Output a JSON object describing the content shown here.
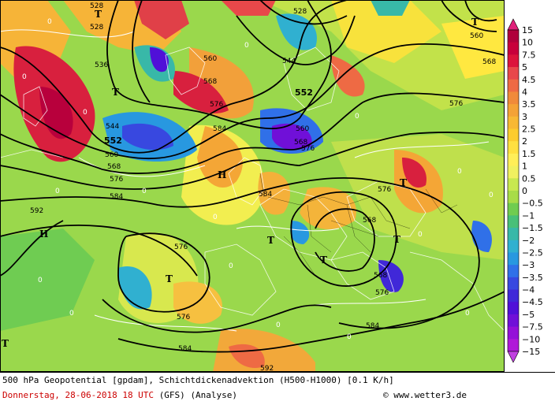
{
  "map": {
    "contour_labels": [
      "528",
      "528",
      "536",
      "544",
      "552",
      "560",
      "568",
      "576",
      "584",
      "592",
      "528",
      "544",
      "552",
      "560",
      "568",
      "576",
      "584",
      "560",
      "568",
      "576",
      "584",
      "576",
      "568",
      "568",
      "576",
      "584",
      "592",
      "576",
      "584",
      "560",
      "568",
      "576"
    ],
    "pressure_labels": [
      "T",
      "T",
      "T",
      "H",
      "H",
      "T",
      "T",
      "T",
      "T",
      "T",
      "T"
    ],
    "zero_label": "0"
  },
  "legend": {
    "ticks": [
      "15",
      "10",
      "7.5",
      "5",
      "4.5",
      "4",
      "3.5",
      "3",
      "2.5",
      "2",
      "1.5",
      "1",
      "0.5",
      "0",
      "−0.5",
      "−1",
      "−1.5",
      "−2",
      "−2.5",
      "−3",
      "−3.5",
      "−4",
      "−4.5",
      "−5",
      "−7.5",
      "−10",
      "−15"
    ],
    "colors": [
      "#b0003c",
      "#c8003c",
      "#dc143c",
      "#e8484a",
      "#ee6a44",
      "#f08a3a",
      "#f4a236",
      "#f8b834",
      "#fccc2e",
      "#ffe040",
      "#ffee58",
      "#f0f060",
      "#c8e850",
      "#a8dc48",
      "#70cc50",
      "#48c078",
      "#38b8a8",
      "#30b0d0",
      "#2898e0",
      "#3070e8",
      "#3848e0",
      "#4028d8",
      "#5010d8",
      "#7010d8",
      "#9410d8",
      "#b018d8",
      "#c828d8"
    ],
    "arrow_colors": {
      "top": "#e0207a",
      "bottom": "#c040e0"
    }
  },
  "footer": {
    "title": "500 hPa Geopotential [gpdam], Schichtdickenadvektion (H500-H1000) [0.1 K/h]",
    "date": "Donnerstag, 28-06-2018  18 UTC",
    "model": "(GFS)",
    "mode": "(Analyse)",
    "copyright_symbol": "©",
    "credit": "www.wetter3.de"
  }
}
